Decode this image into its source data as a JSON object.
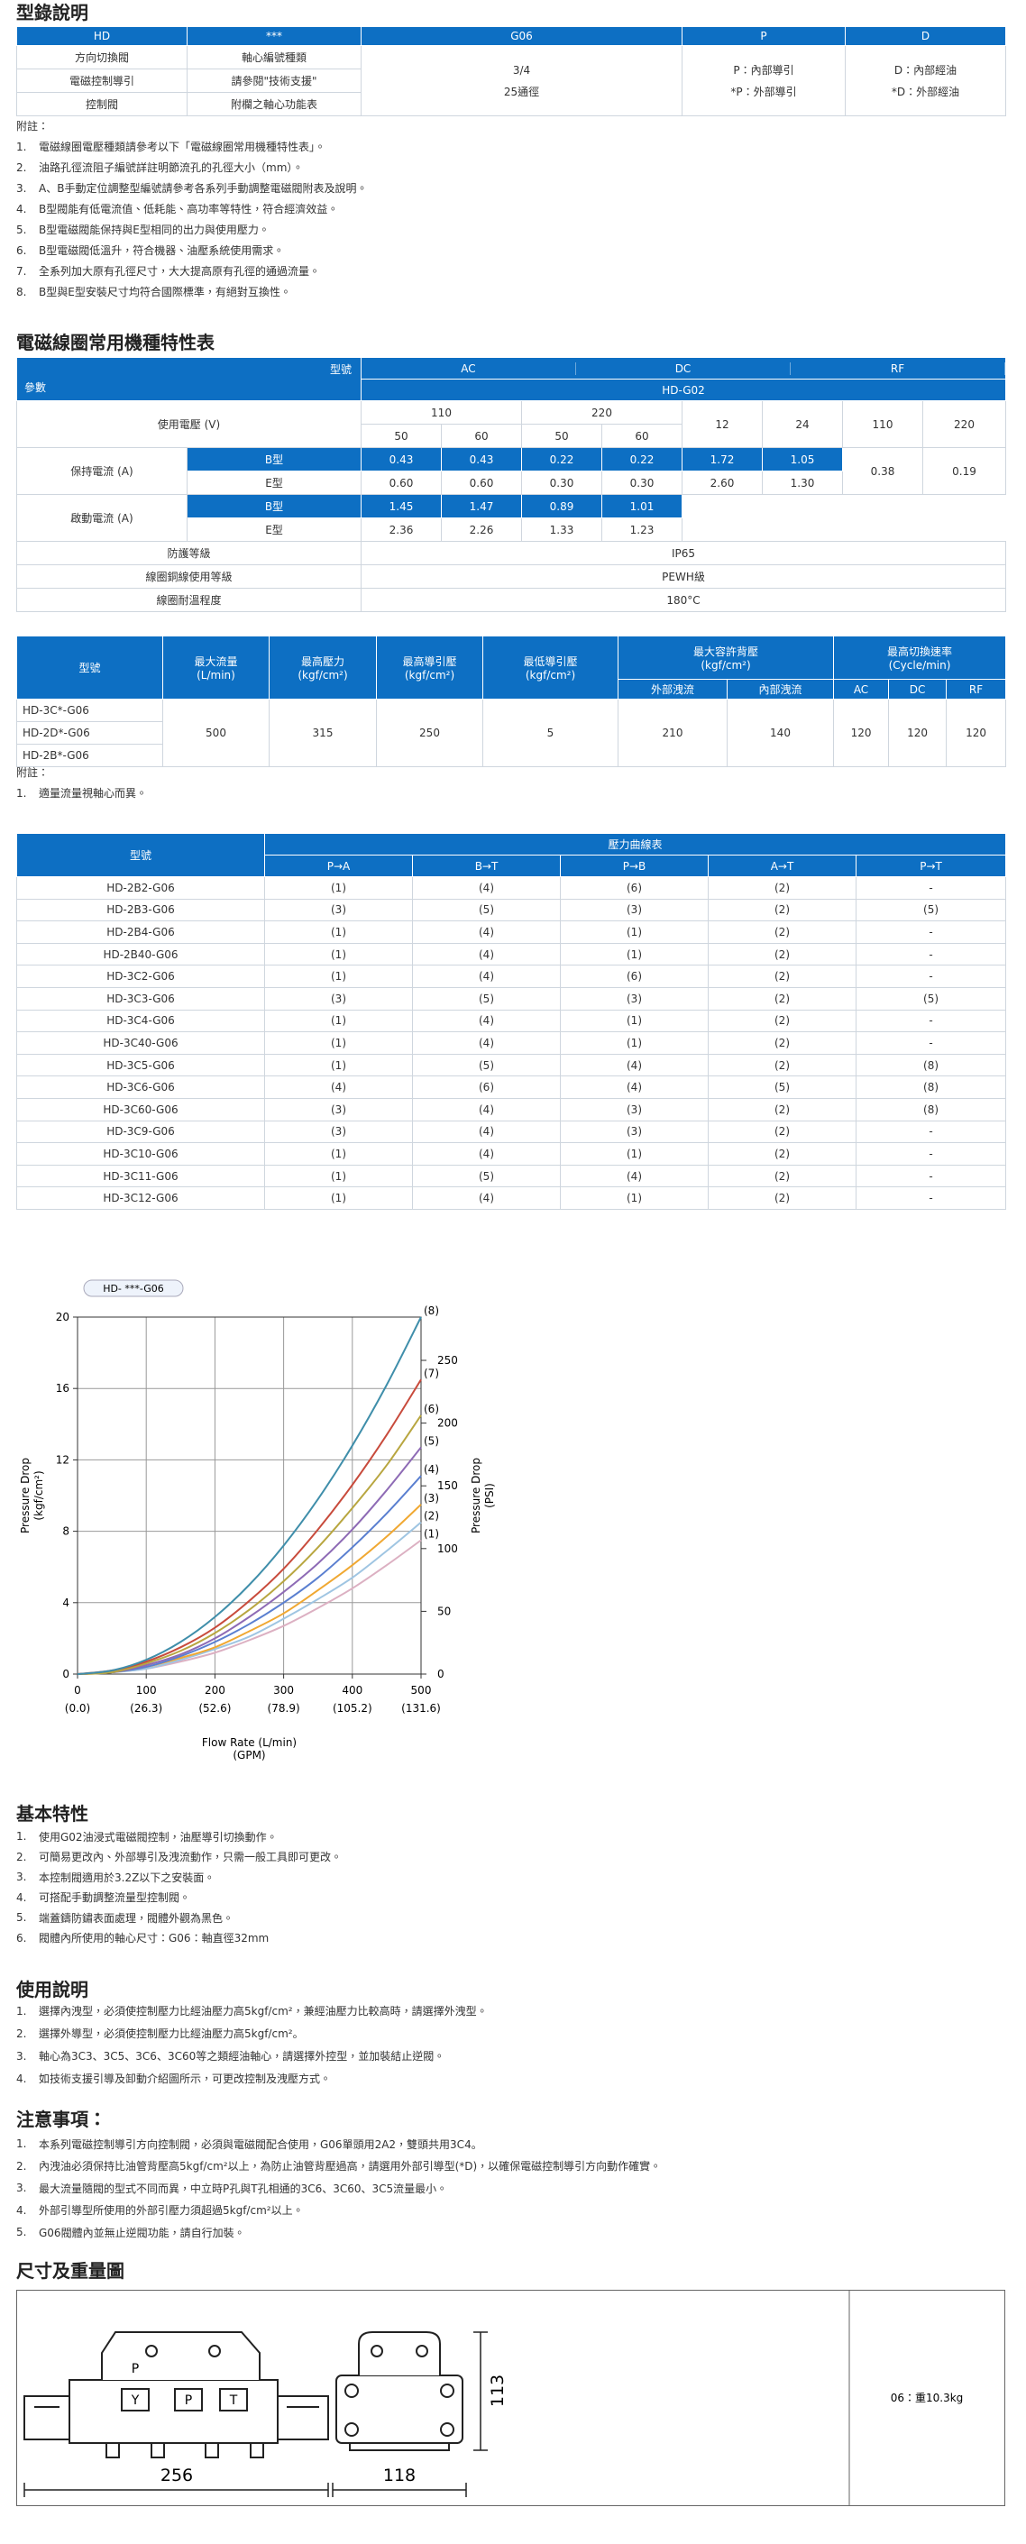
{
  "catalog": {
    "title": "型錄說明",
    "header": [
      "HD",
      "***",
      "G06",
      "P",
      "D"
    ],
    "left": [
      [
        "方向切換閥",
        "軸心編號種類"
      ],
      [
        "電磁控制導引",
        "請參閱\"技術支援\""
      ],
      [
        "控制閥",
        "附欄之軸心功能表"
      ]
    ],
    "merged": [
      [
        "3/4",
        "25通徑"
      ],
      [
        "P：內部導引",
        "*P：外部導引"
      ],
      [
        "D：內部經油",
        "*D：外部經油"
      ]
    ],
    "notes_title": "附註：",
    "notes": [
      [
        "1.",
        "電磁線圈電壓種類請參考以下「電磁線圈常用機種特性表」。"
      ],
      [
        "2.",
        "油路孔徑流阻子編號詳註明節流孔的孔徑大小（mm）。"
      ],
      [
        "3.",
        "A、B手動定位調整型編號請參考各系列手動調整電磁閥附表及說明。"
      ],
      [
        "4.",
        "B型閥能有低電流值、低耗能、高功率等特性，符合經濟效益。"
      ],
      [
        "5.",
        "B型電磁閥能保持與E型相同的出力與使用壓力。"
      ],
      [
        "6.",
        "B型電磁閥低溫升，符合機器、油壓系統使用需求。"
      ],
      [
        "7.",
        "全系列加大原有孔徑尺寸，大大提高原有孔徑的通過流量。"
      ],
      [
        "8.",
        "B型與E型安裝尺寸均符合國際標準，有絕對互換性。"
      ]
    ]
  },
  "coil": {
    "title": "電磁線圈常用機種特性表",
    "corner": [
      "型號",
      "參數"
    ],
    "groups": [
      "AC",
      "DC",
      "RF"
    ],
    "model": "HD-G02",
    "voltage_label": "使用電壓 (V)",
    "voltages": [
      "110",
      "220",
      "12",
      "24",
      "110",
      "220"
    ],
    "freqs": [
      "50",
      "60",
      "50",
      "60"
    ],
    "hold": {
      "label": "保持電流 (A)",
      "B": [
        "B型",
        "0.43",
        "0.43",
        "0.22",
        "0.22",
        "1.72",
        "1.05"
      ],
      "E": [
        "E型",
        "0.60",
        "0.60",
        "0.30",
        "0.30",
        "2.60",
        "1.30"
      ],
      "rf": [
        "0.38",
        "0.19"
      ]
    },
    "start": {
      "label": "啟動電流 (A)",
      "B": [
        "B型",
        "1.45",
        "1.47",
        "0.89",
        "1.01"
      ],
      "E": [
        "E型",
        "2.36",
        "2.26",
        "1.33",
        "1.23"
      ]
    },
    "specs": [
      [
        "防護等級",
        "IP65"
      ],
      [
        "線圈銅線使用等級",
        "PEWH級"
      ],
      [
        "線圈耐溫程度",
        "180°C"
      ]
    ]
  },
  "performance": {
    "headers": [
      "型號",
      "最大流量\n(L/min)",
      "最高壓力\n(kgf/cm²)",
      "最高導引壓\n(kgf/cm²)",
      "最低導引壓\n(kgf/cm²)",
      "最大容許背壓\n(kgf/cm²)",
      "最高切換速率\n(Cycle/min)"
    ],
    "sub": [
      "外部洩流",
      "內部洩流",
      "AC",
      "DC",
      "RF"
    ],
    "models": [
      "HD-3C*-G06",
      "HD-2D*-G06",
      "HD-2B*-G06"
    ],
    "values": [
      "500",
      "315",
      "250",
      "5",
      "210",
      "140",
      "120",
      "120",
      "120"
    ],
    "notes_title": "附註：",
    "notes": [
      [
        "1.",
        "適量流量視軸心而異。"
      ]
    ]
  },
  "curve_table": {
    "headers": [
      "型號",
      "壓力曲線表"
    ],
    "sub": [
      "P→A",
      "B→T",
      "P→B",
      "A→T",
      "P→T"
    ],
    "rows": [
      [
        "HD-2B2-G06",
        "(1)",
        "(4)",
        "(6)",
        "(2)",
        "-"
      ],
      [
        "HD-2B3-G06",
        "(3)",
        "(5)",
        "(3)",
        "(2)",
        "(5)"
      ],
      [
        "HD-2B4-G06",
        "(1)",
        "(4)",
        "(1)",
        "(2)",
        "-"
      ],
      [
        "HD-2B40-G06",
        "(1)",
        "(4)",
        "(1)",
        "(2)",
        "-"
      ],
      [
        "HD-3C2-G06",
        "(1)",
        "(4)",
        "(6)",
        "(2)",
        "-"
      ],
      [
        "HD-3C3-G06",
        "(3)",
        "(5)",
        "(3)",
        "(2)",
        "(5)"
      ],
      [
        "HD-3C4-G06",
        "(1)",
        "(4)",
        "(1)",
        "(2)",
        "-"
      ],
      [
        "HD-3C40-G06",
        "(1)",
        "(4)",
        "(1)",
        "(2)",
        "-"
      ],
      [
        "HD-3C5-G06",
        "(1)",
        "(5)",
        "(4)",
        "(2)",
        "(8)"
      ],
      [
        "HD-3C6-G06",
        "(4)",
        "(6)",
        "(4)",
        "(5)",
        "(8)"
      ],
      [
        "HD-3C60-G06",
        "(3)",
        "(4)",
        "(3)",
        "(2)",
        "(8)"
      ],
      [
        "HD-3C9-G06",
        "(3)",
        "(4)",
        "(3)",
        "(2)",
        "-"
      ],
      [
        "HD-3C10-G06",
        "(1)",
        "(4)",
        "(1)",
        "(2)",
        "-"
      ],
      [
        "HD-3C11-G06",
        "(1)",
        "(5)",
        "(4)",
        "(2)",
        "-"
      ],
      [
        "HD-3C12-G06",
        "(1)",
        "(4)",
        "(1)",
        "(2)",
        "-"
      ]
    ]
  },
  "chart_data": {
    "type": "line",
    "legend_label": "HD- ***-G06",
    "xlabel": "Flow Rate (L/min)",
    "xlabel2": "(GPM)",
    "ylabel": [
      "Pressure Drop",
      "(kgf/cm²)"
    ],
    "y2label": [
      "Pressure Drop",
      "(PSI)"
    ],
    "x": [
      0,
      50,
      100,
      150,
      200,
      250,
      300,
      350,
      400,
      450,
      500
    ],
    "xlim": [
      0,
      500
    ],
    "xticks": [
      0,
      100,
      200,
      300,
      400,
      500
    ],
    "xticks_gpm": [
      "(0.0)",
      "(26.3)",
      "(52.6)",
      "(78.9)",
      "(105.2)",
      "(131.6)"
    ],
    "ylim": [
      0,
      20
    ],
    "yticks": [
      0,
      4,
      8,
      12,
      16,
      20
    ],
    "y2lim": [
      0,
      284.5
    ],
    "y2ticks": [
      0,
      50,
      100,
      150,
      200,
      250
    ],
    "grid": true,
    "series": [
      {
        "name": "(1)",
        "color": "#dcb0c2",
        "values": [
          0,
          0.1,
          0.3,
          0.7,
          1.2,
          1.9,
          2.7,
          3.7,
          4.8,
          6.1,
          7.5
        ]
      },
      {
        "name": "(2)",
        "color": "#9fc5e2",
        "values": [
          0,
          0.1,
          0.3,
          0.8,
          1.4,
          2.1,
          3.1,
          4.2,
          5.4,
          6.9,
          8.5
        ]
      },
      {
        "name": "(3)",
        "color": "#f0a832",
        "values": [
          0,
          0.1,
          0.4,
          0.9,
          1.5,
          2.4,
          3.4,
          4.7,
          6.1,
          7.7,
          9.5
        ]
      },
      {
        "name": "(4)",
        "color": "#5a7fd0",
        "values": [
          0,
          0.1,
          0.4,
          1.0,
          1.8,
          2.8,
          4.0,
          5.4,
          7.1,
          9.0,
          11.1
        ]
      },
      {
        "name": "(5)",
        "color": "#8e6bb5",
        "values": [
          0,
          0.1,
          0.5,
          1.1,
          2.0,
          3.2,
          4.6,
          6.2,
          8.1,
          10.3,
          12.7
        ]
      },
      {
        "name": "(6)",
        "color": "#b8a640",
        "values": [
          0,
          0.1,
          0.6,
          1.3,
          2.3,
          3.6,
          5.2,
          7.1,
          9.3,
          11.7,
          14.5
        ]
      },
      {
        "name": "(7)",
        "color": "#c84b3c",
        "values": [
          0,
          0.2,
          0.7,
          1.5,
          2.6,
          4.1,
          5.9,
          8.1,
          10.6,
          13.4,
          16.5
        ]
      },
      {
        "name": "(8)",
        "color": "#3f8eaa",
        "values": [
          0,
          0.2,
          0.8,
          1.8,
          3.2,
          5,
          7.2,
          9.8,
          12.8,
          16.2,
          20
        ]
      }
    ]
  },
  "basic": {
    "title": "基本特性",
    "items": [
      [
        "1.",
        "使用G02油浸式電磁閥控制，油壓導引切換動作。"
      ],
      [
        "2.",
        "可簡易更改內、外部導引及洩流動作，只需一般工具即可更改。"
      ],
      [
        "3.",
        "本控制閥適用於3.2Z以下之安裝面。"
      ],
      [
        "4.",
        "可搭配手動調整流量型控制閥。"
      ],
      [
        "5.",
        "端蓋鑄防鏽表面處理，閥體外觀為黑色。"
      ],
      [
        "6.",
        "閥體內所使用的軸心尺寸：G06：軸直徑32mm"
      ]
    ]
  },
  "usage": {
    "title": "使用說明",
    "items": [
      [
        "1.",
        "選擇內洩型，必須使控制壓力比經油壓力高5kgf/cm²，兼經油壓力比較高時，請選擇外洩型。"
      ],
      [
        "2.",
        "選擇外導型，必須使控制壓力比經油壓力高5kgf/cm²。"
      ],
      [
        "3.",
        "軸心為3C3、3C5、3C6、3C60等之類經油軸心，請選擇外控型，並加裝結止逆閥。"
      ],
      [
        "4.",
        "如技術支援引導及卸動介紹圖所示，可更改控制及洩壓方式。"
      ]
    ]
  },
  "caution": {
    "title": "注意事項：",
    "items": [
      [
        "1.",
        "本系列電磁控制導引方向控制閥，必須與電磁閥配合使用，G06單頭用2A2，雙頭共用3C4。"
      ],
      [
        "2.",
        "內洩油必須保持比油管背壓高5kgf/cm²以上，為防止油管背壓過高，請選用外部引導型(*D)，以確保電磁控制導引方向動作確實。"
      ],
      [
        "3.",
        "最大流量隨閥的型式不同而異，中立時P孔與T孔相通的3C6、3C60、3C5流量最小。"
      ],
      [
        "4.",
        "外部引導型所使用的外部引壓力須超過5kgf/cm²以上。"
      ],
      [
        "5.",
        "G06閥體內並無止逆閥功能，請自行加裝。"
      ]
    ]
  },
  "dimensions": {
    "title": "尺寸及重量圖",
    "top_port": "P",
    "ports": [
      "Y",
      "P",
      "T"
    ],
    "length": "256",
    "width": "118",
    "height": "113",
    "weight": "06：重10.3kg"
  }
}
